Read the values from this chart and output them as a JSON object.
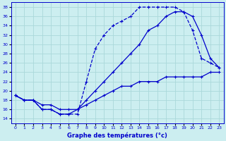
{
  "title": "Graphe des températures (°c)",
  "bg_color": "#cceef0",
  "grid_color": "#aad8da",
  "line_color": "#0000cc",
  "xlim": [
    -0.5,
    23.5
  ],
  "ylim": [
    13,
    39
  ],
  "yticks": [
    14,
    16,
    18,
    20,
    22,
    24,
    26,
    28,
    30,
    32,
    34,
    36,
    38
  ],
  "xticks": [
    0,
    1,
    2,
    3,
    4,
    5,
    6,
    7,
    8,
    9,
    10,
    11,
    12,
    13,
    14,
    15,
    16,
    17,
    18,
    19,
    20,
    21,
    22,
    23
  ],
  "line_straight_x": [
    0,
    1,
    2,
    3,
    4,
    5,
    6,
    7,
    8,
    9,
    10,
    11,
    12,
    13,
    14,
    15,
    16,
    17,
    18,
    19,
    20,
    21,
    22,
    23
  ],
  "line_straight_y": [
    19,
    18,
    18,
    17,
    17,
    16,
    16,
    16,
    17,
    18,
    19,
    20,
    21,
    21,
    22,
    22,
    22,
    23,
    23,
    23,
    23,
    23,
    24,
    24
  ],
  "line_dashed_x": [
    0,
    1,
    2,
    3,
    4,
    5,
    6,
    7,
    8,
    9,
    10,
    11,
    12,
    13,
    14,
    15,
    16,
    17,
    18,
    19,
    20,
    21,
    22,
    23
  ],
  "line_dashed_y": [
    19,
    18,
    18,
    16,
    16,
    15,
    15,
    15,
    22,
    29,
    32,
    34,
    35,
    36,
    38,
    38,
    38,
    38,
    38,
    37,
    33,
    27,
    26,
    25
  ],
  "line_solid2_x": [
    0,
    1,
    2,
    3,
    4,
    5,
    6,
    7,
    8,
    9,
    10,
    11,
    12,
    13,
    14,
    15,
    16,
    17,
    18,
    19,
    20,
    21,
    22,
    23
  ],
  "line_solid2_y": [
    19,
    18,
    18,
    16,
    16,
    15,
    15,
    16,
    18,
    20,
    22,
    24,
    26,
    28,
    30,
    33,
    34,
    36,
    37,
    37,
    36,
    32,
    27,
    25
  ]
}
